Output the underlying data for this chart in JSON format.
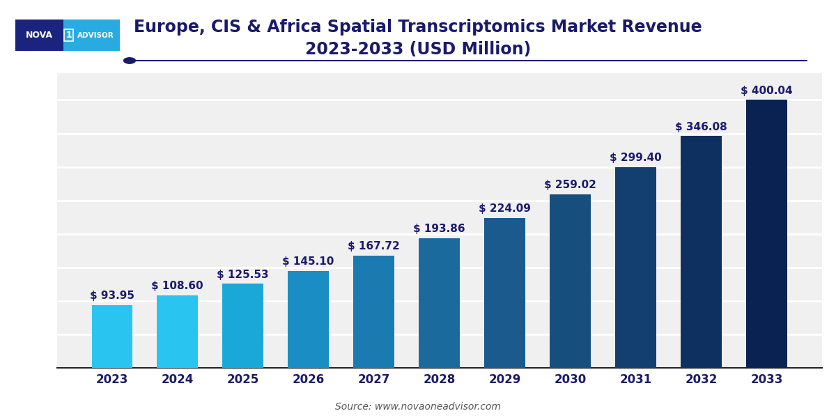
{
  "title_line1": "Europe, CIS & Africa Spatial Transcriptomics Market Revenue",
  "title_line2": "2023-2033 (USD Million)",
  "years": [
    2023,
    2024,
    2025,
    2026,
    2027,
    2028,
    2029,
    2030,
    2031,
    2032,
    2033
  ],
  "values": [
    93.95,
    108.6,
    125.53,
    145.1,
    167.72,
    193.86,
    224.09,
    259.02,
    299.4,
    346.08,
    400.04
  ],
  "bar_colors": [
    "#29C4F0",
    "#29C4F0",
    "#1AA8D8",
    "#1A8EC4",
    "#1A7BB0",
    "#1A6A9E",
    "#1A5A8C",
    "#164E7E",
    "#123F70",
    "#0E3060",
    "#0A2252"
  ],
  "source_text": "Source: www.novaoneadvisor.com",
  "title_color": "#1A1A6C",
  "label_color": "#1A1A6C",
  "axis_label_color": "#1A1A6C",
  "background_color": "#FFFFFF",
  "plot_bg_color": "#F0F0F0",
  "grid_color": "#FFFFFF",
  "ylim": [
    0,
    440
  ],
  "title_fontsize": 17,
  "label_fontsize": 11,
  "tick_fontsize": 12
}
